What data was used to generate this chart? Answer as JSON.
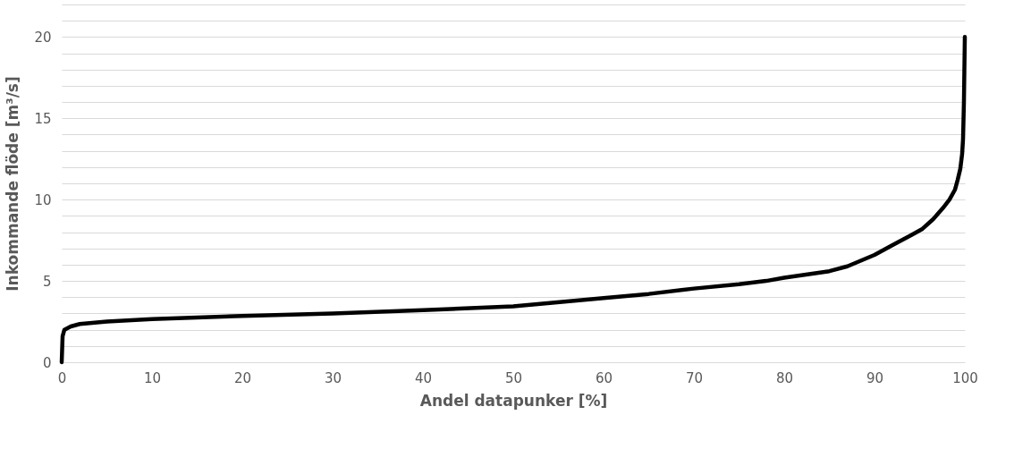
{
  "chart_data": {
    "type": "line",
    "xlabel": "Andel datapunker [%]",
    "ylabel": "Inkommande flöde [m³/s]",
    "x": [
      0,
      0.1,
      0.3,
      1,
      2,
      5,
      10,
      20,
      30,
      40,
      50,
      60,
      65,
      70,
      75,
      78,
      80,
      85,
      87,
      90,
      92,
      94,
      95.3,
      96.5,
      97.6,
      98.3,
      98.9,
      99.2,
      99.5,
      99.7,
      99.8,
      99.9,
      100
    ],
    "series": [
      {
        "color": "#000000",
        "values": [
          0,
          1.6,
          2.0,
          2.2,
          2.35,
          2.5,
          2.65,
          2.85,
          3.0,
          3.2,
          3.44,
          3.95,
          4.2,
          4.53,
          4.8,
          5.0,
          5.2,
          5.6,
          5.9,
          6.6,
          7.2,
          7.8,
          8.2,
          8.8,
          9.5,
          10,
          10.6,
          11.2,
          11.9,
          12.8,
          13.7,
          16,
          20
        ]
      }
    ],
    "xlim": [
      0,
      100
    ],
    "xticks": [
      0,
      10,
      20,
      30,
      40,
      50,
      60,
      70,
      80,
      90,
      100
    ],
    "ylim": [
      0,
      22
    ],
    "yticks": [
      0,
      {
        "value": 1,
        "label": null
      },
      {
        "value": 2,
        "label": null
      },
      {
        "value": 3,
        "label": null
      },
      {
        "value": 4,
        "label": null
      },
      5,
      {
        "value": 6,
        "label": null
      },
      {
        "value": 7,
        "label": null
      },
      {
        "value": 8,
        "label": null
      },
      {
        "value": 9,
        "label": null
      },
      10,
      {
        "value": 11,
        "label": null
      },
      {
        "value": 12,
        "label": null
      },
      {
        "value": 13,
        "label": null
      },
      {
        "value": 14,
        "label": null
      },
      15,
      {
        "value": 16,
        "label": null
      },
      {
        "value": 17,
        "label": null
      },
      {
        "value": 18,
        "label": null
      },
      {
        "value": 19,
        "label": null
      },
      20,
      {
        "value": 21,
        "label": null
      },
      {
        "value": 22,
        "label": null
      }
    ],
    "grid": "y",
    "legend": false,
    "marker": "none",
    "line_style": "solid"
  }
}
